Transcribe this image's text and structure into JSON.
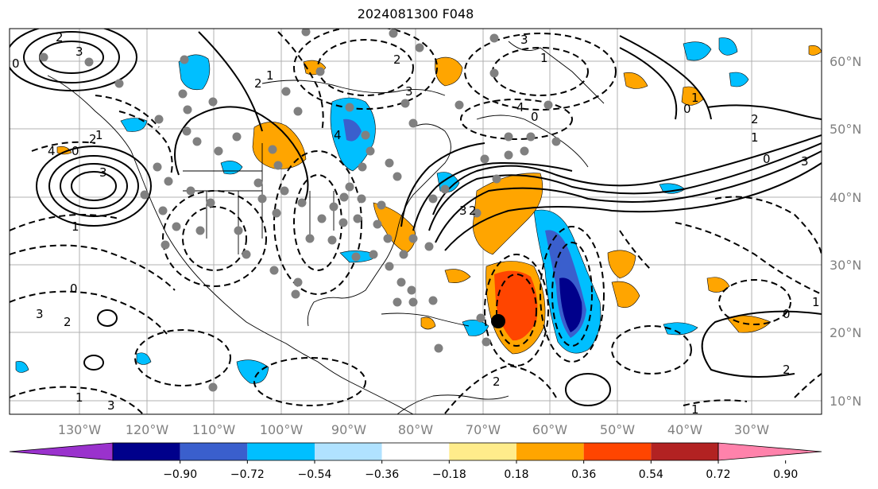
{
  "title": "2024081300 F048",
  "map": {
    "lon_labels": [
      "130°W",
      "120°W",
      "110°W",
      "100°W",
      "90°W",
      "80°W",
      "70°W",
      "60°W",
      "50°W",
      "40°W",
      "30°W"
    ],
    "lat_labels": [
      "60°N",
      "50°N",
      "40°N",
      "30°N",
      "20°N",
      "10°N"
    ],
    "storm_marker": {
      "lon": -68.5,
      "lat": 22
    }
  },
  "colorbar": {
    "ticks": [
      "−0.90",
      "−0.72",
      "−0.54",
      "−0.36",
      "−0.18",
      "0.18",
      "0.36",
      "0.54",
      "0.72",
      "0.90"
    ],
    "colors": [
      "#9a32cd",
      "#00008b",
      "#3a5fcd",
      "#00bfff",
      "#b0e2ff",
      "#ffffff",
      "#ffec8b",
      "#ffa500",
      "#ff4500",
      "#b22222",
      "#ff82ab"
    ]
  },
  "contour_labels": [
    "2",
    "3",
    "0",
    "2",
    "1",
    "3",
    "1",
    "2",
    "3",
    "4",
    "1",
    "2",
    "3",
    "0",
    "4",
    "1",
    "0",
    "3",
    "2",
    "1",
    "3",
    "2",
    "1",
    "2",
    "0",
    "1",
    "0",
    "2",
    "1",
    "0",
    "3",
    "4",
    "1",
    "2",
    "3",
    "0"
  ]
}
